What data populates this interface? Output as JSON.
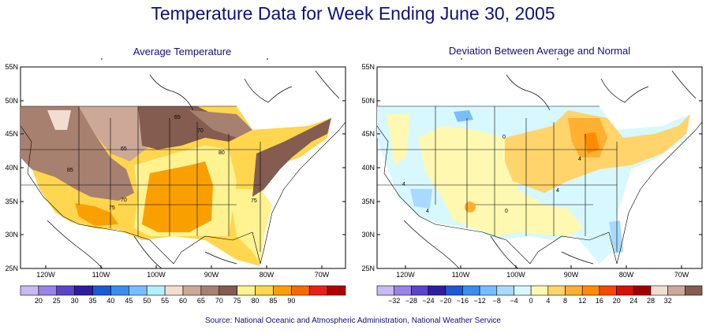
{
  "title": "Temperature Data for Week Ending June 30, 2005",
  "source": "Source:  National Oceanic and Atmospheric Administration, National Weather Service",
  "panels": [
    {
      "title": "Average Temperature",
      "y_ticks": [
        "55N",
        "50N",
        "45N",
        "40N",
        "35N",
        "30N",
        "25N"
      ],
      "x_ticks": [
        "120W",
        "110W",
        "100W",
        "90W",
        "80W",
        "70W"
      ],
      "contour_labels": [
        "65",
        "70",
        "65",
        "80",
        "85",
        "70",
        "75",
        "75"
      ],
      "legend": {
        "labels": [
          "20",
          "25",
          "30",
          "35",
          "40",
          "45",
          "50",
          "55",
          "60",
          "65",
          "70",
          "75",
          "80",
          "85",
          "90"
        ],
        "colors": [
          "#c8b8f4",
          "#9a82e8",
          "#5c44c8",
          "#2e1e9e",
          "#1c58d8",
          "#3c8cf0",
          "#78beff",
          "#b2f0ff",
          "#f2ded0",
          "#cca898",
          "#a88070",
          "#845c50",
          "#fff290",
          "#ffd64e",
          "#f9a000",
          "#f86800",
          "#e82018",
          "#b00000"
        ]
      }
    },
    {
      "title": "Deviation Between Average and Normal",
      "y_ticks": [
        "55N",
        "50N",
        "45N",
        "40N",
        "35N",
        "30N",
        "25N"
      ],
      "x_ticks": [
        "120W",
        "110W",
        "100W",
        "90W",
        "80W",
        "70W"
      ],
      "contour_labels": [
        "0",
        "4",
        "4",
        "4",
        "4",
        "0"
      ],
      "legend": {
        "labels": [
          "−32",
          "−28",
          "−24",
          "−20",
          "−16",
          "−12",
          "−8",
          "−4",
          "0",
          "4",
          "8",
          "12",
          "16",
          "20",
          "24",
          "28",
          "32"
        ],
        "colors": [
          "#c8b8f4",
          "#9a82e8",
          "#5c44c8",
          "#2e1e9e",
          "#1c58d8",
          "#3c8cf0",
          "#78beff",
          "#a8daff",
          "#d8f8ff",
          "#fff8b0",
          "#ffd46a",
          "#ffb030",
          "#ff8c00",
          "#f84800",
          "#d81000",
          "#a00000",
          "#f2ded0",
          "#cca898",
          "#845c50"
        ]
      }
    }
  ]
}
